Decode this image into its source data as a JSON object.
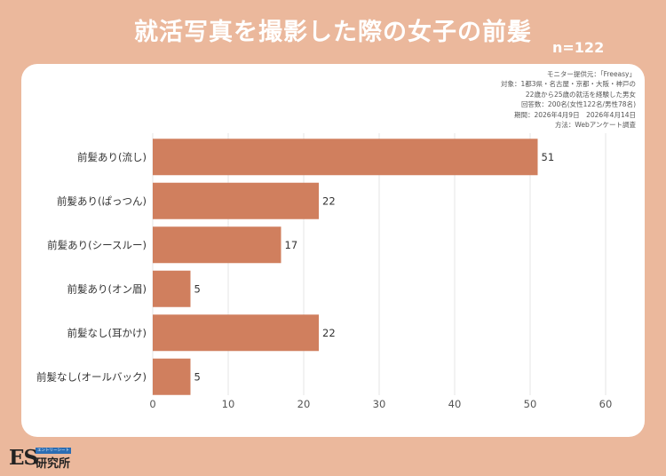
{
  "header": {
    "title": "就活写真を撮影した際の女子の前髪",
    "sample_size": "n=122"
  },
  "survey_note": {
    "lines": [
      "モニター提供元：「Freeasy」",
      "対象：1都3県・名古屋・京都・大阪・神戸の",
      "22歳から25歳の就活を経験した男女",
      "回答数：200名(女性122名/男性78名)",
      "期間：2026年4月9日　2026年4月14日",
      "方法：Webアンケート調査"
    ]
  },
  "logo": {
    "mark": "ES",
    "tagline": "エントリーシート",
    "name": "研究所"
  },
  "colors": {
    "background": "#ebb89c",
    "bar": "#d07f5e",
    "gridline": "#e6e6e6"
  },
  "chart_data": {
    "type": "bar",
    "orientation": "horizontal",
    "title": "就活写真を撮影した際の女子の前髪",
    "categories": [
      "前髪あり(流し)",
      "前髪あり(ぱっつん)",
      "前髪あり(シースルー)",
      "前髪あり(オン眉)",
      "前髪なし(耳かけ)",
      "前髪なし(オールバック)"
    ],
    "values": [
      51,
      22,
      17,
      5,
      22,
      5
    ],
    "xlim": [
      0,
      60
    ],
    "xticks": [
      0,
      10,
      20,
      30,
      40,
      50,
      60
    ],
    "xlabel": "",
    "ylabel": "",
    "grid": "vertical",
    "data_labels": true
  }
}
